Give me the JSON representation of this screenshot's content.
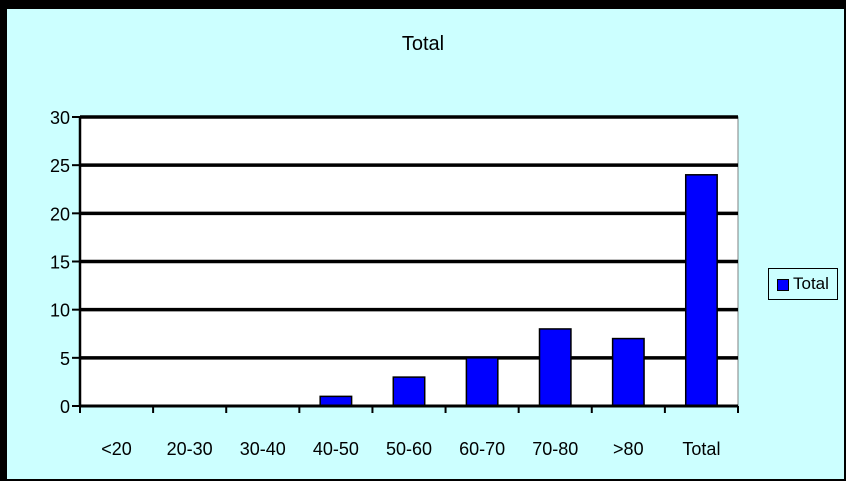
{
  "chart_data": {
    "type": "bar",
    "title": "Total",
    "categories": [
      "<20",
      "20-30",
      "30-40",
      "40-50",
      "50-60",
      "60-70",
      "70-80",
      ">80",
      "Total"
    ],
    "series": [
      {
        "name": "Total",
        "values": [
          0,
          0,
          0,
          1,
          3,
          5,
          8,
          7,
          24
        ],
        "color": "#0000ff"
      }
    ],
    "ylim": [
      0,
      30
    ],
    "yticks": [
      0,
      5,
      10,
      15,
      20,
      25,
      30
    ],
    "grid": true,
    "legend_position": "right",
    "colors": {
      "plot_area": "#ffffff",
      "chart_area": "#ccffff",
      "gridline": "#000000"
    }
  }
}
